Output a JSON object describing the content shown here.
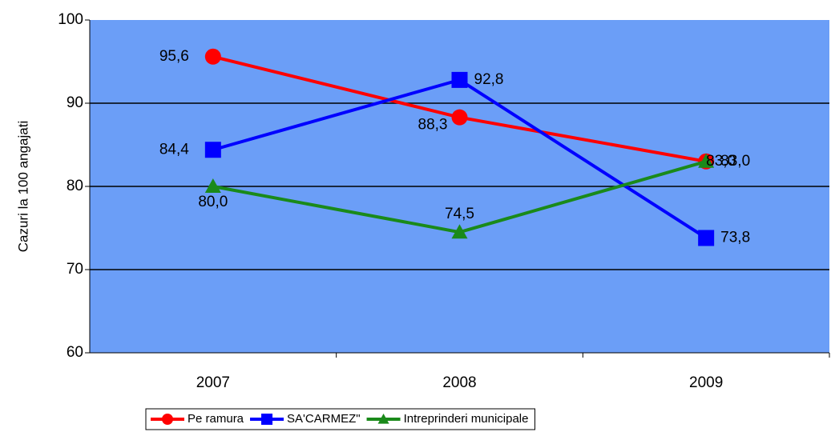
{
  "chart_data": {
    "type": "line",
    "y_label": "Cazuri la 100 angajati",
    "categories": [
      "2007",
      "2008",
      "2009"
    ],
    "series": [
      {
        "name": "Pe ramura",
        "color": "#ff0000",
        "marker": "circle",
        "values": [
          95.6,
          88.3,
          83.0
        ],
        "value_labels": [
          "95,6",
          "88,3",
          "83,0"
        ]
      },
      {
        "name": "SA'CARMEZ\"",
        "color": "#0000ff",
        "marker": "square",
        "values": [
          84.4,
          92.8,
          73.8
        ],
        "value_labels": [
          "84,4",
          "92,8",
          "73,8"
        ]
      },
      {
        "name": "Intreprinderi municipale",
        "color": "#1a8a1a",
        "marker": "triangle",
        "values": [
          80.0,
          74.5,
          83.0
        ],
        "value_labels": [
          "80,0",
          "74,5",
          "83,0"
        ]
      }
    ],
    "ylim": [
      60,
      100
    ],
    "yticks": [
      60,
      70,
      80,
      90,
      100
    ],
    "grid": true,
    "plot_background": "#6b9ef7",
    "legend": "bottom"
  }
}
